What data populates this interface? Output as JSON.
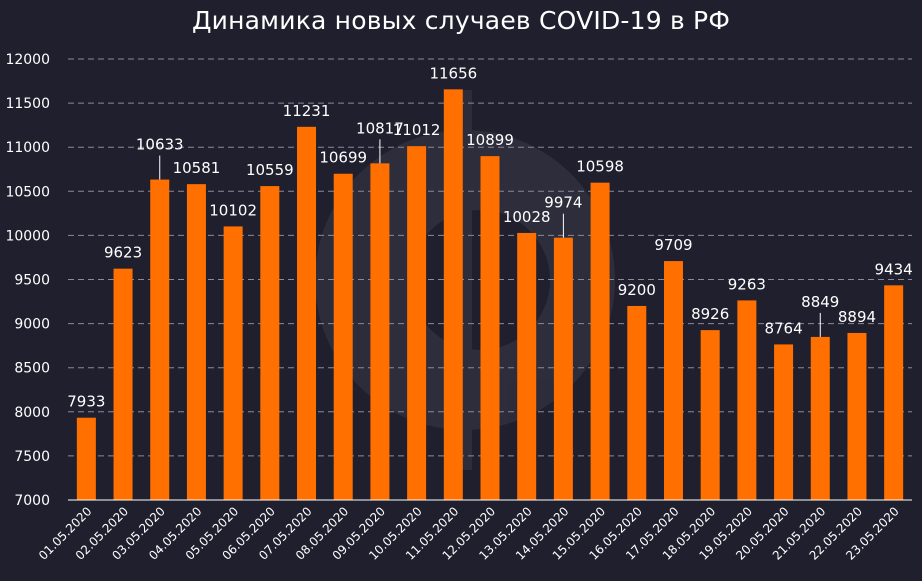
{
  "chart_data": {
    "type": "bar",
    "title": "Динамика новых случаев COVID-19 в РФ",
    "xlabel": "",
    "ylabel": "",
    "ylim": [
      7000,
      12000
    ],
    "yticks": [
      7000,
      7500,
      8000,
      8500,
      9000,
      9500,
      10000,
      10500,
      11000,
      11500,
      12000
    ],
    "grid": "horizontal dashed",
    "legend": "none",
    "categories": [
      "01.05.2020",
      "02.05.2020",
      "03.05.2020",
      "04.05.2020",
      "05.05.2020",
      "06.05.2020",
      "07.05.2020",
      "08.05.2020",
      "09.05.2020",
      "10.05.2020",
      "11.05.2020",
      "12.05.2020",
      "13.05.2020",
      "14.05.2020",
      "15.05.2020",
      "16.05.2020",
      "17.05.2020",
      "18.05.2020",
      "19.05.2020",
      "20.05.2020",
      "21.05.2020",
      "22.05.2020",
      "23.05.2020"
    ],
    "values": [
      7933,
      9623,
      10633,
      10581,
      10102,
      10559,
      11231,
      10699,
      10817,
      11012,
      11656,
      10899,
      10028,
      9974,
      10598,
      9200,
      9709,
      8926,
      9263,
      8764,
      8849,
      8894,
      9434
    ],
    "colors": {
      "bar": "#ff7000",
      "background": "#1f1f2e",
      "grid": "#8a8a99",
      "text": "#ffffff"
    }
  }
}
